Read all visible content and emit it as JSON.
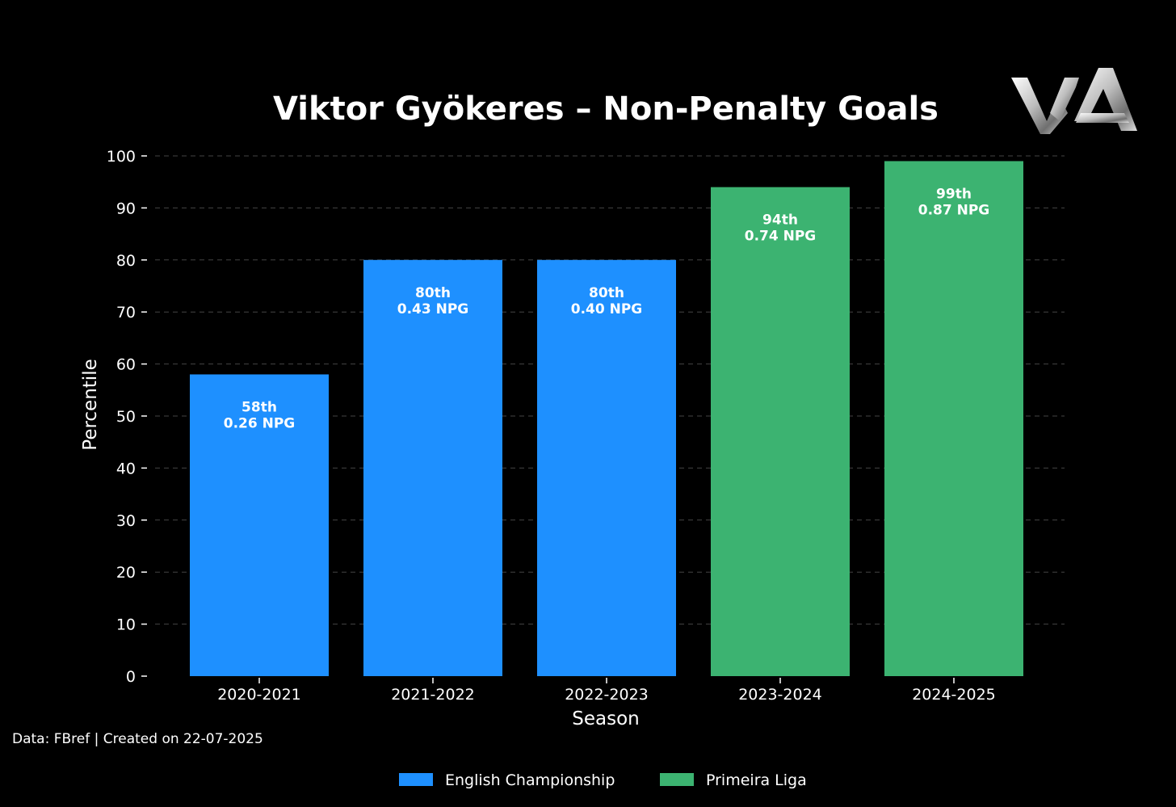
{
  "chart_data": {
    "type": "bar",
    "title": "Viktor Gyökeres – Non-Penalty Goals",
    "xlabel": "Season",
    "ylabel": "Percentile",
    "ylim": [
      0,
      100
    ],
    "yticks": [
      0,
      10,
      20,
      30,
      40,
      50,
      60,
      70,
      80,
      90,
      100
    ],
    "grid": true,
    "categories": [
      "2020-2021",
      "2021-2022",
      "2022-2023",
      "2023-2024",
      "2024-2025"
    ],
    "values": [
      58,
      80,
      80,
      94,
      99
    ],
    "leagues": [
      "English Championship",
      "English Championship",
      "English Championship",
      "Primeira Liga",
      "Primeira Liga"
    ],
    "data_labels": [
      [
        "58th",
        "0.26 NPG"
      ],
      [
        "80th",
        "0.43 NPG"
      ],
      [
        "80th",
        "0.40 NPG"
      ],
      [
        "94th",
        "0.74 NPG"
      ],
      [
        "99th",
        "0.87 NPG"
      ]
    ],
    "legend": {
      "placement": "bottom-center",
      "entries": [
        {
          "name": "English Championship",
          "color": "#1E90FF"
        },
        {
          "name": "Primeira Liga",
          "color": "#3CB371"
        }
      ]
    }
  },
  "source_note": "Data: FBref | Created on 22-07-2025",
  "logo": {
    "text": "WA",
    "icon": "wa-logo-icon"
  },
  "colors": {
    "background": "#000000",
    "text": "#ffffff",
    "grid": "#444444",
    "English Championship": "#1E90FF",
    "Primeira Liga": "#3CB371"
  }
}
